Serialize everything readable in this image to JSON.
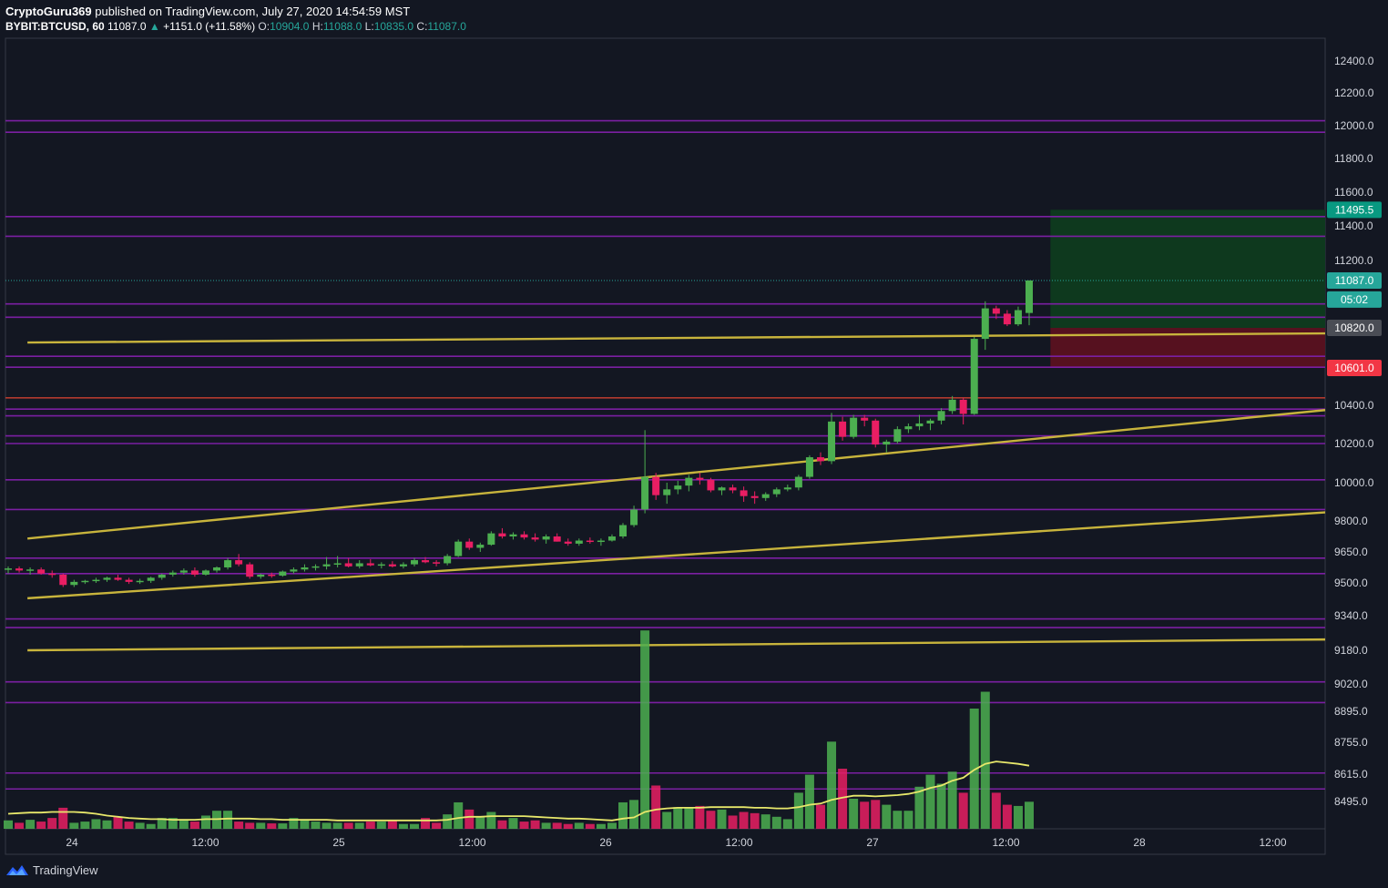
{
  "header": {
    "author": "CryptoGuru369",
    "published": "published on TradingView.com, July 27, 2020 14:54:59 MST",
    "symbol": "BYBIT:BTCUSD, 60",
    "last": "11087.0",
    "change": "+1151.0 (+11.58%)",
    "o_label": "O:",
    "o": "10904.0",
    "h_label": "H:",
    "h": "11088.0",
    "l_label": "L:",
    "l": "10835.0",
    "c_label": "C:",
    "c": "11087.0"
  },
  "footer": {
    "brand": "TradingView"
  },
  "chart_data": {
    "type": "candlestick",
    "x_ticks": [
      "24",
      "12:00",
      "25",
      "12:00",
      "26",
      "12:00",
      "27",
      "12:00",
      "28",
      "12:00"
    ],
    "y_ticks": [
      12400,
      12200,
      12000,
      11800,
      11600,
      11400,
      11200,
      10400,
      10200,
      10000,
      9800,
      9650,
      9500,
      9340,
      9180,
      9020,
      8895,
      8755,
      8615,
      8495
    ],
    "y_tick_labels": [
      "12400.0",
      "12200.0",
      "12000.0",
      "11800.0",
      "11600.0",
      "11400.0",
      "11200.0",
      "10400.0",
      "10200.0",
      "10000.0",
      "9800.0",
      "9650.0",
      "9500.0",
      "9340.0",
      "9180.0",
      "9020.0",
      "8895.0",
      "8755.0",
      "8615.0",
      "8495.0"
    ],
    "price_badges": [
      {
        "label": "11495.5",
        "value": 11495.5,
        "color": "#089981"
      },
      {
        "label": "11087.0",
        "value": 11087,
        "color": "#26a69a"
      },
      {
        "label": "05:02",
        "value": 10980,
        "color": "#26a69a"
      },
      {
        "label": "10820.0",
        "value": 10820,
        "color": "#4a4d55"
      },
      {
        "label": "10601.0",
        "value": 10601,
        "color": "#f23645"
      }
    ],
    "horizontal_levels": [
      12030,
      11960,
      11455,
      11340,
      10955,
      10880,
      10665,
      10605,
      10380,
      10345,
      10240,
      10200,
      10015,
      9860,
      9620,
      9545,
      9325,
      9285,
      9030,
      8935,
      8620,
      8550
    ],
    "resistance_level": 10440,
    "trendlines": [
      {
        "from": [
          "23 20:00",
          10740
        ],
        "to": [
          "28 20:00",
          10790
        ]
      },
      {
        "from": [
          "23 20:00",
          9715
        ],
        "to": [
          "28 20:00",
          10375
        ]
      },
      {
        "from": [
          "23 20:00",
          9425
        ],
        "to": [
          "28 20:00",
          9845
        ]
      },
      {
        "from": [
          "23 20:00",
          9180
        ],
        "to": [
          "28 20:00",
          9230
        ]
      }
    ],
    "position": {
      "start": "27 16:00",
      "end": "28 20:00",
      "entry": 10820,
      "target": 11495.5,
      "stop": 10601
    },
    "last_price": 11087,
    "candles": [
      [
        9565,
        9580,
        9545,
        9570
      ],
      [
        9570,
        9580,
        9550,
        9560
      ],
      [
        9560,
        9575,
        9540,
        9565
      ],
      [
        9565,
        9575,
        9540,
        9545
      ],
      [
        9545,
        9560,
        9525,
        9540
      ],
      [
        9540,
        9545,
        9480,
        9490
      ],
      [
        9490,
        9515,
        9480,
        9505
      ],
      [
        9505,
        9515,
        9495,
        9510
      ],
      [
        9510,
        9525,
        9500,
        9515
      ],
      [
        9515,
        9530,
        9505,
        9525
      ],
      [
        9525,
        9540,
        9510,
        9515
      ],
      [
        9515,
        9525,
        9495,
        9505
      ],
      [
        9505,
        9520,
        9495,
        9510
      ],
      [
        9510,
        9530,
        9500,
        9525
      ],
      [
        9525,
        9545,
        9515,
        9540
      ],
      [
        9540,
        9560,
        9530,
        9550
      ],
      [
        9550,
        9570,
        9540,
        9560
      ],
      [
        9560,
        9575,
        9530,
        9540
      ],
      [
        9540,
        9565,
        9535,
        9560
      ],
      [
        9560,
        9580,
        9550,
        9575
      ],
      [
        9575,
        9620,
        9565,
        9610
      ],
      [
        9610,
        9640,
        9580,
        9590
      ],
      [
        9590,
        9600,
        9520,
        9530
      ],
      [
        9530,
        9545,
        9520,
        9540
      ],
      [
        9540,
        9550,
        9525,
        9535
      ],
      [
        9535,
        9560,
        9530,
        9555
      ],
      [
        9555,
        9575,
        9545,
        9565
      ],
      [
        9565,
        9590,
        9555,
        9575
      ],
      [
        9575,
        9590,
        9560,
        9580
      ],
      [
        9580,
        9625,
        9565,
        9590
      ],
      [
        9590,
        9630,
        9575,
        9595
      ],
      [
        9595,
        9620,
        9575,
        9580
      ],
      [
        9580,
        9610,
        9570,
        9595
      ],
      [
        9595,
        9615,
        9580,
        9585
      ],
      [
        9585,
        9600,
        9570,
        9590
      ],
      [
        9590,
        9605,
        9575,
        9580
      ],
      [
        9580,
        9600,
        9570,
        9590
      ],
      [
        9590,
        9620,
        9580,
        9610
      ],
      [
        9610,
        9625,
        9595,
        9600
      ],
      [
        9600,
        9610,
        9580,
        9595
      ],
      [
        9595,
        9640,
        9585,
        9630
      ],
      [
        9630,
        9710,
        9625,
        9700
      ],
      [
        9700,
        9715,
        9660,
        9670
      ],
      [
        9670,
        9695,
        9650,
        9685
      ],
      [
        9685,
        9750,
        9680,
        9740
      ],
      [
        9740,
        9765,
        9715,
        9725
      ],
      [
        9725,
        9745,
        9710,
        9735
      ],
      [
        9735,
        9750,
        9710,
        9720
      ],
      [
        9720,
        9740,
        9700,
        9710
      ],
      [
        9710,
        9735,
        9690,
        9725
      ],
      [
        9725,
        9740,
        9700,
        9700
      ],
      [
        9700,
        9715,
        9680,
        9690
      ],
      [
        9690,
        9715,
        9680,
        9705
      ],
      [
        9705,
        9720,
        9690,
        9700
      ],
      [
        9700,
        9715,
        9680,
        9705
      ],
      [
        9705,
        9735,
        9700,
        9725
      ],
      [
        9725,
        9790,
        9715,
        9780
      ],
      [
        9780,
        9880,
        9770,
        9860
      ],
      [
        9860,
        10270,
        9840,
        10030
      ],
      [
        10030,
        10050,
        9910,
        9935
      ],
      [
        9935,
        10000,
        9890,
        9965
      ],
      [
        9965,
        10010,
        9940,
        9985
      ],
      [
        9985,
        10040,
        9955,
        10025
      ],
      [
        10025,
        10050,
        9990,
        10015
      ],
      [
        10015,
        10025,
        9950,
        9960
      ],
      [
        9960,
        9980,
        9935,
        9975
      ],
      [
        9975,
        9990,
        9945,
        9960
      ],
      [
        9960,
        9980,
        9900,
        9930
      ],
      [
        9930,
        9955,
        9890,
        9920
      ],
      [
        9920,
        9950,
        9905,
        9940
      ],
      [
        9940,
        9975,
        9925,
        9965
      ],
      [
        9965,
        9990,
        9955,
        9975
      ],
      [
        9975,
        10040,
        9960,
        10030
      ],
      [
        10030,
        10140,
        10020,
        10130
      ],
      [
        10130,
        10155,
        10090,
        10110
      ],
      [
        10110,
        10360,
        10095,
        10315
      ],
      [
        10315,
        10340,
        10215,
        10235
      ],
      [
        10235,
        10350,
        10225,
        10335
      ],
      [
        10335,
        10350,
        10290,
        10320
      ],
      [
        10320,
        10330,
        10180,
        10195
      ],
      [
        10195,
        10220,
        10155,
        10210
      ],
      [
        10210,
        10290,
        10200,
        10275
      ],
      [
        10275,
        10305,
        10255,
        10290
      ],
      [
        10290,
        10350,
        10270,
        10305
      ],
      [
        10305,
        10330,
        10270,
        10320
      ],
      [
        10320,
        10385,
        10300,
        10370
      ],
      [
        10370,
        10450,
        10355,
        10430
      ],
      [
        10430,
        10440,
        10300,
        10355
      ],
      [
        10355,
        10770,
        10350,
        10760
      ],
      [
        10760,
        10970,
        10700,
        10930
      ],
      [
        10930,
        10945,
        10870,
        10900
      ],
      [
        10900,
        10920,
        10830,
        10840
      ],
      [
        10840,
        10940,
        10830,
        10920
      ],
      [
        10904,
        11088,
        10835,
        11087
      ]
    ],
    "volume": [
      14,
      10,
      15,
      12,
      18,
      35,
      10,
      12,
      16,
      14,
      20,
      12,
      10,
      8,
      18,
      18,
      16,
      12,
      22,
      30,
      30,
      12,
      10,
      10,
      9,
      9,
      18,
      16,
      12,
      10,
      10,
      10,
      10,
      12,
      12,
      14,
      8,
      8,
      18,
      10,
      24,
      44,
      32,
      20,
      28,
      14,
      18,
      12,
      14,
      10,
      10,
      8,
      10,
      8,
      8,
      10,
      44,
      48,
      330,
      72,
      28,
      36,
      36,
      38,
      30,
      32,
      22,
      28,
      26,
      24,
      20,
      16,
      60,
      90,
      40,
      145,
      100,
      50,
      45,
      48,
      40,
      30,
      30,
      70,
      90,
      75,
      95,
      60,
      200,
      228,
      60,
      40,
      38,
      45
    ],
    "volume_sma": [
      25,
      26,
      27,
      27,
      28,
      28,
      28,
      27,
      25,
      22,
      20,
      18,
      17,
      16,
      16,
      15,
      15,
      15,
      16,
      16,
      17,
      17,
      17,
      16,
      16,
      15,
      15,
      15,
      15,
      15,
      14,
      14,
      14,
      14,
      14,
      14,
      14,
      14,
      14,
      14,
      15,
      18,
      20,
      20,
      21,
      21,
      21,
      21,
      20,
      19,
      18,
      17,
      17,
      16,
      15,
      14,
      17,
      19,
      28,
      32,
      34,
      35,
      35,
      35,
      36,
      36,
      36,
      36,
      35,
      35,
      34,
      34,
      36,
      40,
      42,
      48,
      52,
      55,
      55,
      54,
      55,
      56,
      58,
      62,
      68,
      72,
      80,
      85,
      98,
      108,
      112,
      110,
      108,
      105
    ]
  }
}
